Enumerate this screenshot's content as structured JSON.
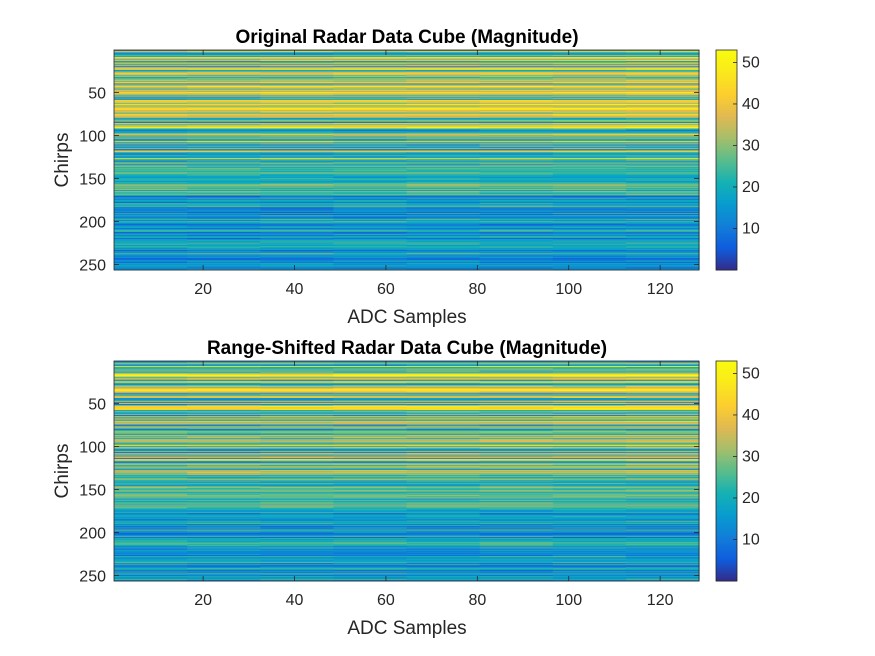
{
  "chart_data": [
    {
      "type": "heatmap",
      "title": "Original Radar Data Cube (Magnitude)",
      "xlabel": "ADC Samples",
      "ylabel": "Chirps",
      "xlim": [
        0.5,
        128.5
      ],
      "ylim": [
        0.5,
        256.5
      ],
      "x_ticks": [
        20,
        40,
        60,
        80,
        100,
        120
      ],
      "y_ticks": [
        50,
        100,
        150,
        200,
        250
      ],
      "y_reversed": true,
      "n_chirps": 256,
      "n_samples": 128,
      "colormap": "parula",
      "colorbar": {
        "ticks": [
          10,
          20,
          30,
          40,
          50
        ],
        "clim": [
          0,
          53
        ]
      },
      "row_profile": [
        {
          "chirp_range": [
            1,
            40
          ],
          "mean_magnitude": 30,
          "notes": "alternating bright yellow and dark blue bands"
        },
        {
          "chirp_range": [
            40,
            130
          ],
          "mean_magnitude": 28,
          "notes": "strong alternating bands up to ~50"
        },
        {
          "chirp_range": [
            130,
            170
          ],
          "mean_magnitude": 23,
          "notes": "mixed cyan/blue bands"
        },
        {
          "chirp_range": [
            170,
            256
          ],
          "mean_magnitude": 16,
          "notes": "mostly blue with occasional cyan bands"
        }
      ]
    },
    {
      "type": "heatmap",
      "title": "Range-Shifted Radar Data Cube (Magnitude)",
      "xlabel": "ADC Samples",
      "ylabel": "Chirps",
      "xlim": [
        0.5,
        128.5
      ],
      "ylim": [
        0.5,
        256.5
      ],
      "x_ticks": [
        20,
        40,
        60,
        80,
        100,
        120
      ],
      "y_ticks": [
        50,
        100,
        150,
        200,
        250
      ],
      "y_reversed": true,
      "n_chirps": 256,
      "n_samples": 128,
      "colormap": "parula",
      "colorbar": {
        "ticks": [
          10,
          20,
          30,
          40,
          50
        ],
        "clim": [
          0,
          53
        ]
      },
      "row_profile": [
        {
          "chirp_range": [
            1,
            40
          ],
          "mean_magnitude": 30,
          "notes": "alternating bright yellow and dark blue bands"
        },
        {
          "chirp_range": [
            40,
            130
          ],
          "mean_magnitude": 28,
          "notes": "strong alternating bands up to ~50"
        },
        {
          "chirp_range": [
            130,
            170
          ],
          "mean_magnitude": 23,
          "notes": "mixed cyan/blue bands"
        },
        {
          "chirp_range": [
            170,
            256
          ],
          "mean_magnitude": 16,
          "notes": "mostly blue with occasional cyan bands"
        }
      ]
    }
  ]
}
